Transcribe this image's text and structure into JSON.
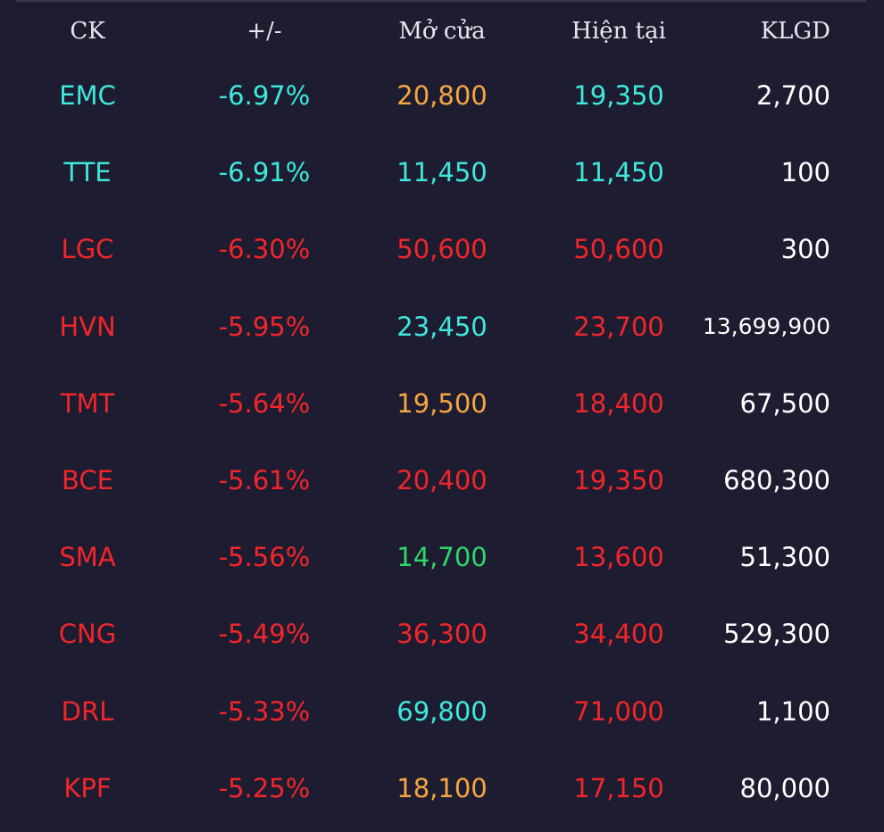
{
  "colors": {
    "background": "#1e1c30",
    "cyan": "#3ee8dc",
    "red": "#f0262b",
    "orange": "#f5a642",
    "green": "#2fd66a",
    "white": "#ffffff"
  },
  "header": {
    "ck": "CK",
    "change": "+/-",
    "open": "Mở cửa",
    "current": "Hiện tại",
    "volume": "KLGD"
  },
  "rows": [
    {
      "ck": "EMC",
      "change": "-6.97%",
      "open": "20,800",
      "current": "19,350",
      "volume": "2,700",
      "ck_color": "cyan",
      "change_color": "cyan",
      "open_color": "orange",
      "current_color": "cyan"
    },
    {
      "ck": "TTE",
      "change": "-6.91%",
      "open": "11,450",
      "current": "11,450",
      "volume": "100",
      "ck_color": "cyan",
      "change_color": "cyan",
      "open_color": "cyan",
      "current_color": "cyan"
    },
    {
      "ck": "LGC",
      "change": "-6.30%",
      "open": "50,600",
      "current": "50,600",
      "volume": "300",
      "ck_color": "red",
      "change_color": "red",
      "open_color": "red",
      "current_color": "red"
    },
    {
      "ck": "HVN",
      "change": "-5.95%",
      "open": "23,450",
      "current": "23,700",
      "volume": "13,699,900",
      "ck_color": "red",
      "change_color": "red",
      "open_color": "cyan",
      "current_color": "red"
    },
    {
      "ck": "TMT",
      "change": "-5.64%",
      "open": "19,500",
      "current": "18,400",
      "volume": "67,500",
      "ck_color": "red",
      "change_color": "red",
      "open_color": "orange",
      "current_color": "red"
    },
    {
      "ck": "BCE",
      "change": "-5.61%",
      "open": "20,400",
      "current": "19,350",
      "volume": "680,300",
      "ck_color": "red",
      "change_color": "red",
      "open_color": "red",
      "current_color": "red"
    },
    {
      "ck": "SMA",
      "change": "-5.56%",
      "open": "14,700",
      "current": "13,600",
      "volume": "51,300",
      "ck_color": "red",
      "change_color": "red",
      "open_color": "green",
      "current_color": "red"
    },
    {
      "ck": "CNG",
      "change": "-5.49%",
      "open": "36,300",
      "current": "34,400",
      "volume": "529,300",
      "ck_color": "red",
      "change_color": "red",
      "open_color": "red",
      "current_color": "red"
    },
    {
      "ck": "DRL",
      "change": "-5.33%",
      "open": "69,800",
      "current": "71,000",
      "volume": "1,100",
      "ck_color": "red",
      "change_color": "red",
      "open_color": "cyan",
      "current_color": "red"
    },
    {
      "ck": "KPF",
      "change": "-5.25%",
      "open": "18,100",
      "current": "17,150",
      "volume": "80,000",
      "ck_color": "red",
      "change_color": "red",
      "open_color": "orange",
      "current_color": "red"
    }
  ]
}
